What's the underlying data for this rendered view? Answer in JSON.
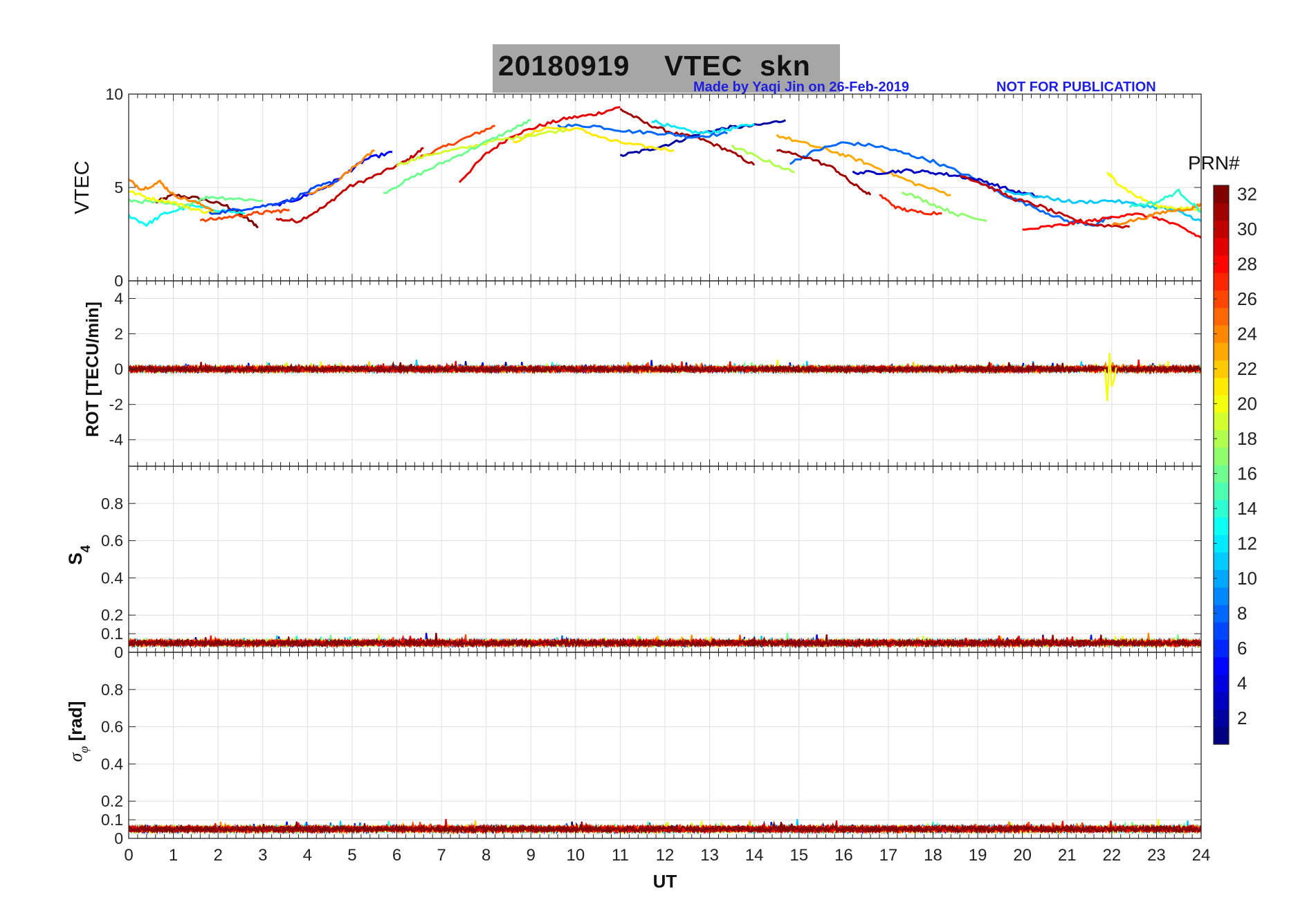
{
  "title": "20180919    VTEC  skn",
  "credit_left": "Made by Yaqi Jin on 26-Feb-2019",
  "credit_right": "NOT FOR PUBLICATION",
  "colorbar": {
    "label": "PRN#",
    "min": 1,
    "max": 32,
    "ticks": [
      2,
      4,
      6,
      8,
      10,
      12,
      14,
      16,
      18,
      20,
      22,
      24,
      26,
      28,
      30,
      32
    ]
  },
  "colors": {
    "axis": "#262626",
    "grid": "#e0e0e0",
    "credit": "#1f1fe0",
    "title_box": "#a6a6a6"
  },
  "chart_data": [
    {
      "type": "line",
      "panel": "vtec",
      "ylabel": "VTEC",
      "ylim": [
        0,
        10
      ],
      "yticks": [
        0,
        5,
        10
      ],
      "xlim": [
        0,
        24
      ],
      "grid": true,
      "series": [
        {
          "prn": 32,
          "x": [
            0.6,
            1.0,
            1.6,
            2.2,
            2.6,
            2.9
          ],
          "y": [
            4.2,
            4.6,
            4.4,
            4.0,
            3.4,
            2.9
          ]
        },
        {
          "prn": 30,
          "x": [
            3.3,
            3.8,
            4.4,
            4.9,
            5.5,
            6.2,
            6.6
          ],
          "y": [
            3.3,
            3.2,
            4.0,
            5.0,
            5.6,
            6.4,
            7.1
          ]
        },
        {
          "prn": 26,
          "x": [
            6.5,
            7.1,
            7.7,
            8.2
          ],
          "y": [
            6.6,
            7.2,
            7.8,
            8.3
          ]
        },
        {
          "prn": 29,
          "x": [
            7.4,
            8.0,
            8.6,
            9.2,
            9.8,
            10.4,
            11.0
          ],
          "y": [
            5.3,
            6.8,
            7.8,
            8.3,
            8.7,
            8.9,
            9.3
          ]
        },
        {
          "prn": 31,
          "x": [
            11.0,
            11.6,
            12.2,
            12.8,
            13.4,
            14.0
          ],
          "y": [
            9.2,
            8.4,
            7.9,
            7.6,
            7.0,
            6.2
          ]
        },
        {
          "prn": 2,
          "x": [
            11.0,
            11.6,
            12.2,
            12.8,
            13.4,
            14.0,
            14.7
          ],
          "y": [
            6.7,
            7.0,
            7.4,
            7.9,
            8.2,
            8.3,
            8.6
          ]
        },
        {
          "prn": 12,
          "x": [
            11.7,
            12.2,
            12.8,
            13.4,
            14.0
          ],
          "y": [
            8.6,
            8.2,
            7.9,
            8.1,
            8.4
          ]
        },
        {
          "prn": 8,
          "x": [
            9.6,
            10.4,
            11.2,
            12.0,
            12.6,
            13.4
          ],
          "y": [
            8.3,
            8.3,
            8.0,
            7.9,
            7.7,
            7.9
          ]
        },
        {
          "prn": 21,
          "x": [
            8.6,
            9.3,
            10.1,
            10.8,
            11.5,
            12.2
          ],
          "y": [
            7.4,
            8.2,
            8.1,
            7.5,
            7.2,
            7.0
          ]
        },
        {
          "prn": 19,
          "x": [
            6.0,
            6.8,
            7.5,
            8.2,
            9.0,
            9.8
          ],
          "y": [
            6.2,
            6.8,
            7.1,
            7.5,
            7.8,
            8.1
          ]
        },
        {
          "prn": 16,
          "x": [
            5.7,
            6.4,
            7.1,
            7.8,
            8.5,
            9.0
          ],
          "y": [
            4.7,
            5.6,
            6.4,
            7.2,
            8.0,
            8.6
          ]
        },
        {
          "prn": 5,
          "x": [
            3.2,
            3.8,
            4.4,
            4.9,
            5.3,
            5.9
          ],
          "y": [
            4.0,
            4.4,
            5.0,
            5.8,
            6.5,
            6.9
          ]
        },
        {
          "prn": 24,
          "x": [
            4.0,
            4.6,
            5.0,
            5.5
          ],
          "y": [
            4.6,
            5.2,
            6.0,
            7.0
          ]
        },
        {
          "prn": 13,
          "x": [
            0.0,
            0.4,
            0.8,
            1.4,
            2.0,
            2.6
          ],
          "y": [
            3.5,
            3.0,
            3.6,
            4.0,
            3.8,
            3.6
          ]
        },
        {
          "prn": 16,
          "x": [
            0.0,
            0.6,
            1.2,
            1.8,
            2.4,
            3.0
          ],
          "y": [
            4.3,
            4.2,
            4.0,
            4.5,
            4.4,
            4.3
          ]
        },
        {
          "prn": 20,
          "x": [
            0.0,
            0.5,
            1.0,
            1.5,
            2.0
          ],
          "y": [
            4.8,
            4.4,
            4.2,
            3.8,
            3.6
          ]
        },
        {
          "prn": 24,
          "x": [
            0.0,
            0.3,
            0.7,
            1.0,
            1.5,
            1.9
          ],
          "y": [
            5.4,
            4.9,
            5.3,
            4.6,
            4.2,
            3.8
          ]
        },
        {
          "prn": 26,
          "x": [
            1.6,
            2.2,
            2.8,
            3.2,
            3.6
          ],
          "y": [
            3.2,
            3.4,
            3.6,
            3.7,
            3.8
          ]
        },
        {
          "prn": 7,
          "x": [
            1.8,
            2.4,
            3.0,
            3.6,
            4.2,
            4.7
          ],
          "y": [
            3.6,
            3.8,
            4.0,
            4.3,
            5.0,
            5.4
          ]
        },
        {
          "prn": 23,
          "x": [
            14.5,
            15.2,
            15.8,
            16.4,
            17.0,
            17.6,
            18.4
          ],
          "y": [
            7.8,
            7.3,
            6.9,
            6.4,
            5.8,
            5.2,
            4.6
          ]
        },
        {
          "prn": 8,
          "x": [
            14.8,
            15.4,
            16.0,
            16.8,
            17.4,
            18.0,
            18.8,
            19.6,
            20.4,
            21.0,
            21.6,
            22.0
          ],
          "y": [
            6.3,
            7.0,
            7.4,
            7.2,
            6.8,
            6.4,
            5.6,
            4.6,
            3.8,
            3.2,
            3.0,
            3.4
          ]
        },
        {
          "prn": 31,
          "x": [
            14.5,
            15.2,
            15.8,
            16.2,
            16.6
          ],
          "y": [
            7.0,
            6.6,
            6.0,
            5.2,
            4.6
          ]
        },
        {
          "prn": 18,
          "x": [
            13.5,
            14.2,
            14.9
          ],
          "y": [
            7.2,
            6.5,
            5.8
          ]
        },
        {
          "prn": 3,
          "x": [
            16.2,
            16.8,
            17.4,
            18.0,
            18.6,
            19.2,
            19.8,
            20.4
          ],
          "y": [
            5.8,
            5.8,
            5.9,
            5.8,
            5.6,
            5.3,
            4.8,
            4.5
          ]
        },
        {
          "prn": 27,
          "x": [
            16.8,
            17.2,
            17.6,
            18.2
          ],
          "y": [
            4.6,
            3.9,
            3.7,
            3.6
          ]
        },
        {
          "prn": 17,
          "x": [
            17.3,
            17.9,
            18.5,
            19.2
          ],
          "y": [
            4.8,
            4.2,
            3.6,
            3.2
          ]
        },
        {
          "prn": 30,
          "x": [
            18.6,
            19.2,
            19.8,
            20.4,
            21.0,
            21.6,
            22.4
          ],
          "y": [
            5.7,
            5.1,
            4.4,
            4.0,
            3.4,
            3.0,
            2.9
          ]
        },
        {
          "prn": 11,
          "x": [
            19.6,
            20.4,
            21.2,
            22.0,
            22.8,
            23.4,
            24.0
          ],
          "y": [
            4.8,
            4.5,
            4.2,
            4.3,
            4.0,
            3.8,
            3.2
          ]
        },
        {
          "prn": 28,
          "x": [
            20.0,
            20.6,
            21.2,
            21.8,
            22.4,
            23.0,
            23.6,
            24.0
          ],
          "y": [
            2.7,
            2.9,
            3.1,
            3.3,
            3.6,
            3.4,
            2.8,
            2.3
          ]
        },
        {
          "prn": 20,
          "x": [
            21.9,
            22.1,
            22.5,
            23.0,
            23.5,
            24.0
          ],
          "y": [
            5.8,
            5.3,
            4.6,
            4.0,
            3.9,
            3.8
          ]
        },
        {
          "prn": 24,
          "x": [
            22.0,
            22.6,
            23.2,
            23.8,
            24.0
          ],
          "y": [
            3.0,
            3.3,
            3.7,
            3.9,
            4.1
          ]
        },
        {
          "prn": 14,
          "x": [
            22.4,
            23.0,
            23.5,
            24.0
          ],
          "y": [
            4.0,
            4.2,
            4.8,
            3.7
          ]
        }
      ]
    },
    {
      "type": "line",
      "panel": "rot",
      "ylabel": "ROT [TECU/min]",
      "ylim": [
        -5.5,
        5
      ],
      "yticks": [
        -4,
        -2,
        0,
        2,
        4
      ],
      "xlim": [
        0,
        24
      ],
      "grid": true,
      "noise_band": 0.3,
      "series": [
        {
          "prn": 20,
          "name": "",
          "x": [
            21.85,
            21.9,
            21.95,
            22.0,
            22.05,
            22.1
          ],
          "y": [
            0.0,
            -1.8,
            0.9,
            -1.0,
            -0.6,
            0.1
          ]
        }
      ]
    },
    {
      "type": "line",
      "panel": "s4",
      "ylabel": "S4",
      "ylim": [
        0,
        1
      ],
      "yticks": [
        0,
        0.1,
        0.2,
        0.4,
        0.6,
        0.8
      ],
      "xlim": [
        0,
        24
      ],
      "grid": true,
      "baseline": 0.05,
      "noise_band": 0.03
    },
    {
      "type": "line",
      "panel": "sigma_phi",
      "ylabel": "σφ [rad]",
      "ylim": [
        0,
        1
      ],
      "yticks": [
        0,
        0.1,
        0.2,
        0.4,
        0.6,
        0.8
      ],
      "xlim": [
        0,
        24
      ],
      "xticks": [
        0,
        1,
        2,
        3,
        4,
        5,
        6,
        7,
        8,
        9,
        10,
        11,
        12,
        13,
        14,
        15,
        16,
        17,
        18,
        19,
        20,
        21,
        22,
        23,
        24
      ],
      "xlabel": "UT",
      "grid": true,
      "baseline": 0.05,
      "noise_band": 0.03
    }
  ]
}
